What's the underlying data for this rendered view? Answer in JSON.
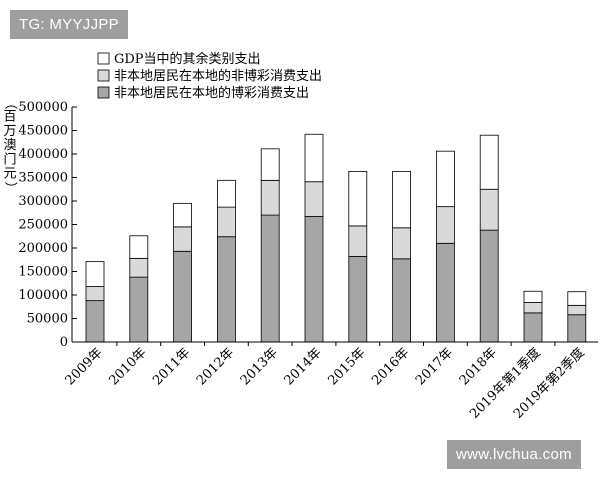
{
  "watermarks": {
    "top_left": "TG: MYYJJPP",
    "bottom_right": "www.lvchua.com"
  },
  "chart_data": {
    "type": "bar",
    "stacked": true,
    "ylabel": "（百万澳门元）",
    "ylim": [
      0,
      500000
    ],
    "yticks": [
      0,
      50000,
      100000,
      150000,
      200000,
      250000,
      300000,
      350000,
      400000,
      450000,
      500000
    ],
    "yticklabels": [
      "0",
      "50000",
      "100000",
      "150000",
      "200000",
      "250000",
      "300000",
      "350000",
      "400000",
      "450000",
      "500000"
    ],
    "categories": [
      "2009年",
      "2010年",
      "2011年",
      "2012年",
      "2013年",
      "2014年",
      "2015年",
      "2016年",
      "2017年",
      "2018年",
      "2019年第1季度",
      "2019年第2季度"
    ],
    "legend_position": "top-left",
    "series": [
      {
        "name": "非本地居民在本地的博彩消费支出",
        "color": "#a6a6a6",
        "values": [
          88000,
          138000,
          193000,
          224000,
          270000,
          267000,
          182000,
          177000,
          210000,
          238000,
          62000,
          58000
        ]
      },
      {
        "name": "非本地居民在本地的非博彩消费支出",
        "color": "#d9d9d9",
        "values": [
          30000,
          40000,
          52000,
          63000,
          74000,
          74000,
          65000,
          66000,
          78000,
          87000,
          22000,
          20000
        ]
      },
      {
        "name": "GDP当中的其余类别支出",
        "color": "#ffffff",
        "values": [
          53000,
          48000,
          50000,
          57000,
          67000,
          101000,
          116000,
          120000,
          118000,
          115000,
          24000,
          29000
        ]
      }
    ],
    "legend_order": [
      2,
      1,
      0
    ]
  }
}
